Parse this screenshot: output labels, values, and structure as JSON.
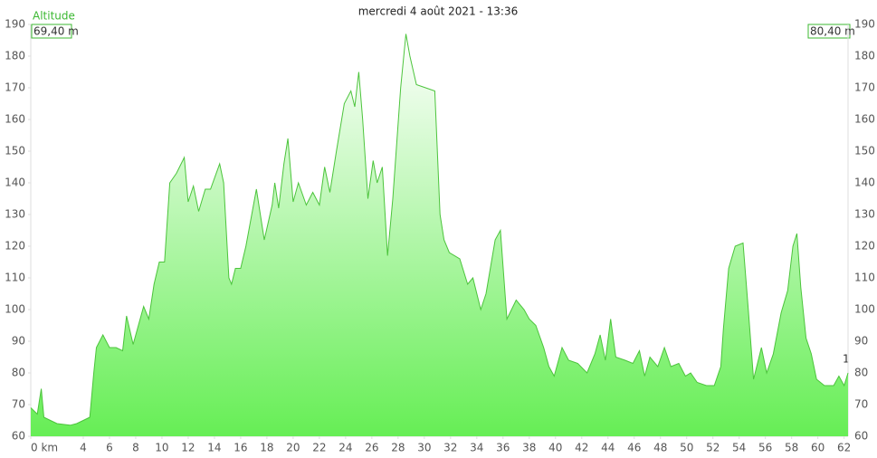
{
  "chart_data": {
    "type": "area",
    "title": "mercredi 4 août 2021 - 13:36",
    "series_label": "Altitude",
    "left_readout": "69,40 m",
    "right_readout": "80,40 m",
    "marker_label": "1",
    "color": "#4cc43c",
    "fill_top": "#ffffff",
    "fill_bottom": "#66ee55",
    "xlim": [
      0,
      62.3
    ],
    "ylim": [
      60,
      190
    ],
    "xticks": [
      {
        "value": 0,
        "label": "0 km"
      },
      4,
      6,
      8,
      10,
      12,
      14,
      16,
      18,
      20,
      22,
      24,
      26,
      28,
      30,
      32,
      34,
      36,
      38,
      40,
      42,
      44,
      46,
      48,
      50,
      52,
      54,
      56,
      58,
      60,
      62
    ],
    "yticks": [
      60,
      70,
      80,
      90,
      100,
      110,
      120,
      130,
      140,
      150,
      160,
      170,
      180,
      190
    ],
    "x": [
      0,
      0.5,
      0.8,
      1.0,
      1.5,
      2,
      3,
      3.5,
      4,
      4.5,
      4.8,
      5,
      5.5,
      6,
      6.5,
      7,
      7.3,
      7.8,
      8.6,
      9.0,
      9.4,
      9.8,
      10.2,
      10.6,
      11.1,
      11.7,
      12,
      12.4,
      12.8,
      13.3,
      13.7,
      14.4,
      14.7,
      15.1,
      15.3,
      15.6,
      16,
      16.4,
      17.2,
      17.8,
      18.4,
      18.6,
      18.9,
      19.3,
      19.6,
      20,
      20.4,
      21,
      21.5,
      22,
      22.4,
      22.8,
      23.3,
      23.9,
      24.4,
      24.7,
      25,
      25.3,
      25.7,
      26.1,
      26.4,
      26.8,
      27.2,
      27.6,
      28.2,
      28.6,
      28.9,
      29.4,
      30.1,
      30.8,
      31.2,
      31.5,
      31.9,
      32.7,
      33.3,
      33.7,
      34.3,
      34.7,
      35.4,
      35.8,
      36.3,
      37,
      37.6,
      38,
      38.5,
      39.1,
      39.5,
      39.9,
      40.5,
      41,
      41.7,
      42.4,
      43,
      43.4,
      43.8,
      44.2,
      44.6,
      45.3,
      45.9,
      46.4,
      46.8,
      47.2,
      47.8,
      48.3,
      48.8,
      49.4,
      49.9,
      50.3,
      50.8,
      51.5,
      52.1,
      52.6,
      52.8,
      53.2,
      53.7,
      54.3,
      54.7,
      55.1,
      55.7,
      56.1,
      56.6,
      57.2,
      57.7,
      58.1,
      58.4,
      58.7,
      59.1,
      59.5,
      59.9,
      60.5,
      61.2,
      61.6,
      62,
      62.3
    ],
    "values": [
      69,
      67,
      75,
      66,
      65,
      64,
      63.5,
      64,
      65,
      66,
      80,
      88,
      92,
      88,
      88,
      87,
      98,
      89,
      101,
      97,
      108,
      115,
      115,
      140,
      143,
      148,
      134,
      139,
      131,
      138,
      138,
      146,
      140,
      110,
      108,
      113,
      113,
      120,
      138,
      122,
      133,
      140,
      132,
      146,
      154,
      134,
      140,
      133,
      137,
      133,
      145,
      137,
      150,
      165,
      169,
      164,
      175,
      160,
      135,
      147,
      140,
      145,
      117,
      135,
      170,
      187,
      180,
      171,
      170,
      169,
      130,
      122,
      118,
      116,
      108,
      110,
      100,
      105,
      122,
      125,
      97,
      103,
      100,
      97,
      95,
      88,
      82,
      79,
      88,
      84,
      83,
      80,
      86,
      92,
      84,
      97,
      85,
      84,
      83,
      87,
      79,
      85,
      82,
      88,
      82,
      83,
      79,
      80,
      77,
      76,
      76,
      82,
      94,
      113,
      120,
      121,
      100,
      78,
      88,
      80,
      86,
      99,
      106,
      120,
      124,
      107,
      91,
      86,
      78,
      76,
      76,
      79,
      76,
      80
    ]
  }
}
